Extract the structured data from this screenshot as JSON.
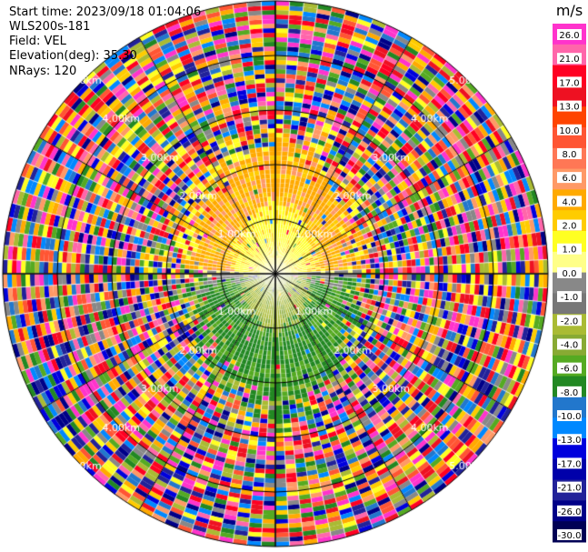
{
  "header": {
    "start_time": "Start time: 2023/09/18 01:04:06",
    "site": "WLS200s-181",
    "field": "Field: VEL",
    "elevation": "Elevation(deg): 35.30",
    "nrays": "NRays: 120"
  },
  "chart_data": {
    "type": "heatmap",
    "projection": "polar",
    "n_rays": 120,
    "range_rings_km": [
      1.0,
      2.0,
      3.0,
      4.0,
      5.0
    ],
    "ring_labels": [
      "1.00km",
      "2.00km",
      "3.00km",
      "4.00km",
      "5.00km"
    ],
    "max_range_km": 5.0,
    "field": "VEL",
    "colorbar": {
      "unit": "m/s",
      "ticks": [
        "26.0",
        "21.0",
        "17.0",
        "13.0",
        "10.0",
        "8.0",
        "6.0",
        "4.0",
        "2.0",
        "1.0",
        "0.0",
        "-1.0",
        "-2.0",
        "-4.0",
        "-6.0",
        "-8.0",
        "-10.0",
        "-13.0",
        "-17.0",
        "-21.0",
        "-26.0",
        "-30.0"
      ],
      "colors": [
        "#ff33cc",
        "#ff66aa",
        "#ff0022",
        "#ee1122",
        "#ff4400",
        "#ff5533",
        "#ff7755",
        "#ff9966",
        "#ffaa00",
        "#ffcc00",
        "#ffff22",
        "#ffff88",
        "#888888",
        "#777777",
        "#aabb33",
        "#88aa33",
        "#55aa22",
        "#228822",
        "#2277cc",
        "#0088ff",
        "#0000dd",
        "#0000aa",
        "#222299",
        "#000088",
        "#000055"
      ]
    }
  }
}
